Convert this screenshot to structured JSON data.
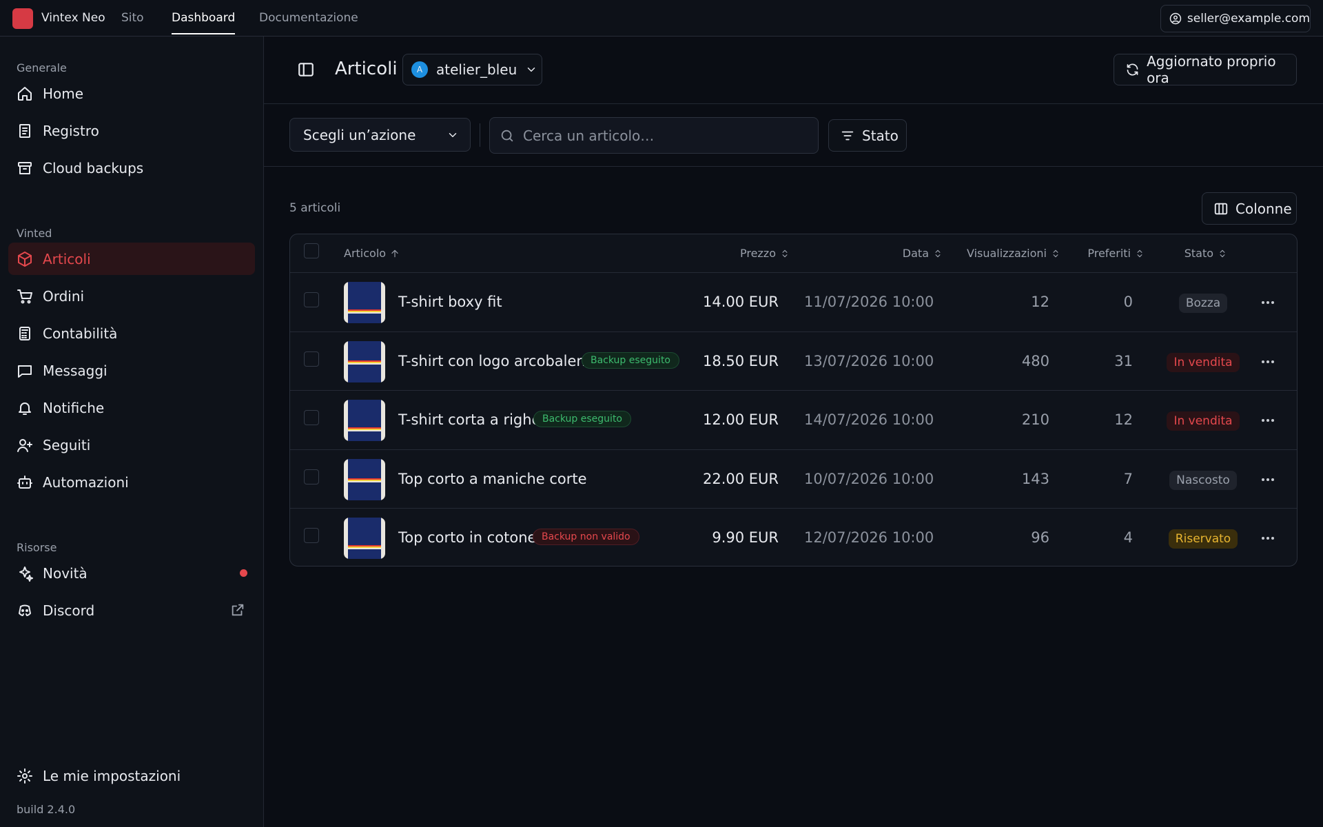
{
  "topbar": {
    "brand": "Vintex Neo",
    "nav": [
      "Sito",
      "Dashboard",
      "Documentazione"
    ],
    "user": "seller@example.com"
  },
  "sidebar": {
    "sections": [
      {
        "title": "Generale",
        "items": [
          "Home",
          "Registro",
          "Cloud backups"
        ]
      },
      {
        "title": "Vinted",
        "items": [
          "Articoli",
          "Ordini",
          "Contabilità",
          "Messaggi",
          "Notifiche",
          "Seguiti",
          "Automazioni"
        ]
      },
      {
        "title": "Risorse",
        "items": [
          "Novità",
          "Discord"
        ]
      }
    ],
    "settings": "Le mie impostazioni",
    "build": "build 2.4.0"
  },
  "header": {
    "title": "Articoli",
    "account_initial": "A",
    "account": "atelier_bleu",
    "refresh": "Aggiornato proprio ora"
  },
  "toolbar": {
    "action": "Scegli un’azione",
    "search_placeholder": "Cerca un articolo…",
    "filter": "Stato"
  },
  "count": "5 articoli",
  "columns_button": "Colonne",
  "table": {
    "columns": [
      "Articolo",
      "Prezzo",
      "Data",
      "Visualizzazioni",
      "Preferiti",
      "Stato"
    ],
    "rows": [
      {
        "title": "T-shirt boxy fit",
        "price": "14.00 EUR",
        "date": "11/07/2026 10:00",
        "views": 12,
        "favorites": 0,
        "status": "Bozza"
      },
      {
        "title": "T-shirt con logo arcobaleno",
        "badge": "Backup eseguito",
        "price": "18.50 EUR",
        "date": "13/07/2026 10:00",
        "views": 480,
        "favorites": 31,
        "status": "In vendita"
      },
      {
        "title": "T-shirt corta a righe",
        "badge": "Backup eseguito",
        "price": "12.00 EUR",
        "date": "14/07/2026 10:00",
        "views": 210,
        "favorites": 12,
        "status": "In vendita"
      },
      {
        "title": "Top corto a maniche corte",
        "price": "22.00 EUR",
        "date": "10/07/2026 10:00",
        "views": 143,
        "favorites": 7,
        "status": "Nascosto"
      },
      {
        "title": "Top corto in cotone",
        "badge": "Backup non valido",
        "price": "9.90 EUR",
        "date": "12/07/2026 10:00",
        "views": 96,
        "favorites": 4,
        "status": "Riservato"
      }
    ]
  }
}
